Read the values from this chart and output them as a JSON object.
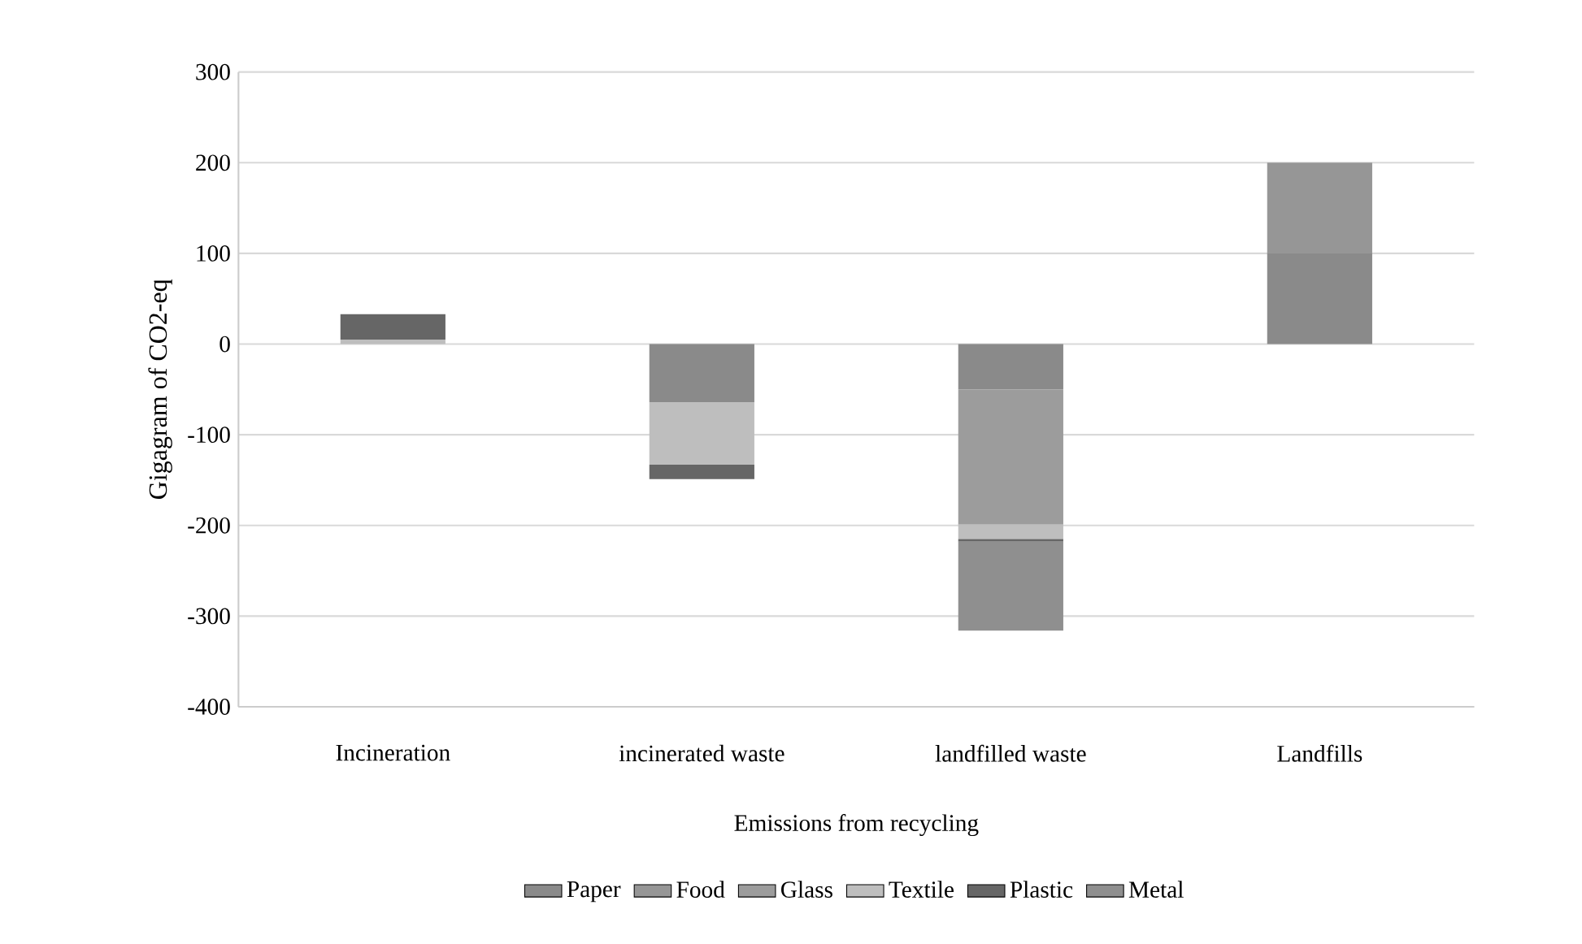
{
  "chart_data": {
    "type": "bar",
    "stacked": true,
    "ylabel": "Gigagram of CO2-eq",
    "categories": [
      "Incineration",
      "incinerated waste",
      "landfilled waste",
      "Landfills"
    ],
    "annotations": [
      "Emissions from recycling"
    ],
    "series": [
      {
        "name": "Paper",
        "color": "#8a8a8a",
        "values": [
          null,
          -64,
          -50,
          100
        ]
      },
      {
        "name": "Food",
        "color": "#969696",
        "values": [
          null,
          null,
          null,
          100
        ]
      },
      {
        "name": "Glass",
        "color": "#9c9c9c",
        "values": [
          null,
          null,
          -149,
          null
        ]
      },
      {
        "name": "Textile",
        "color": "#bebebe",
        "values": [
          5,
          -69,
          -16,
          null
        ]
      },
      {
        "name": "Plastic",
        "color": "#666666",
        "values": [
          28,
          -16,
          -3,
          null
        ]
      },
      {
        "name": "Metal",
        "color": "#8f8f8f",
        "values": [
          null,
          null,
          -98,
          null
        ]
      }
    ],
    "ylim": [
      -400,
      300
    ],
    "yticks": [
      -400,
      -300,
      -200,
      -100,
      0,
      100,
      200,
      300
    ],
    "grid": "y",
    "legend": "bottom"
  }
}
